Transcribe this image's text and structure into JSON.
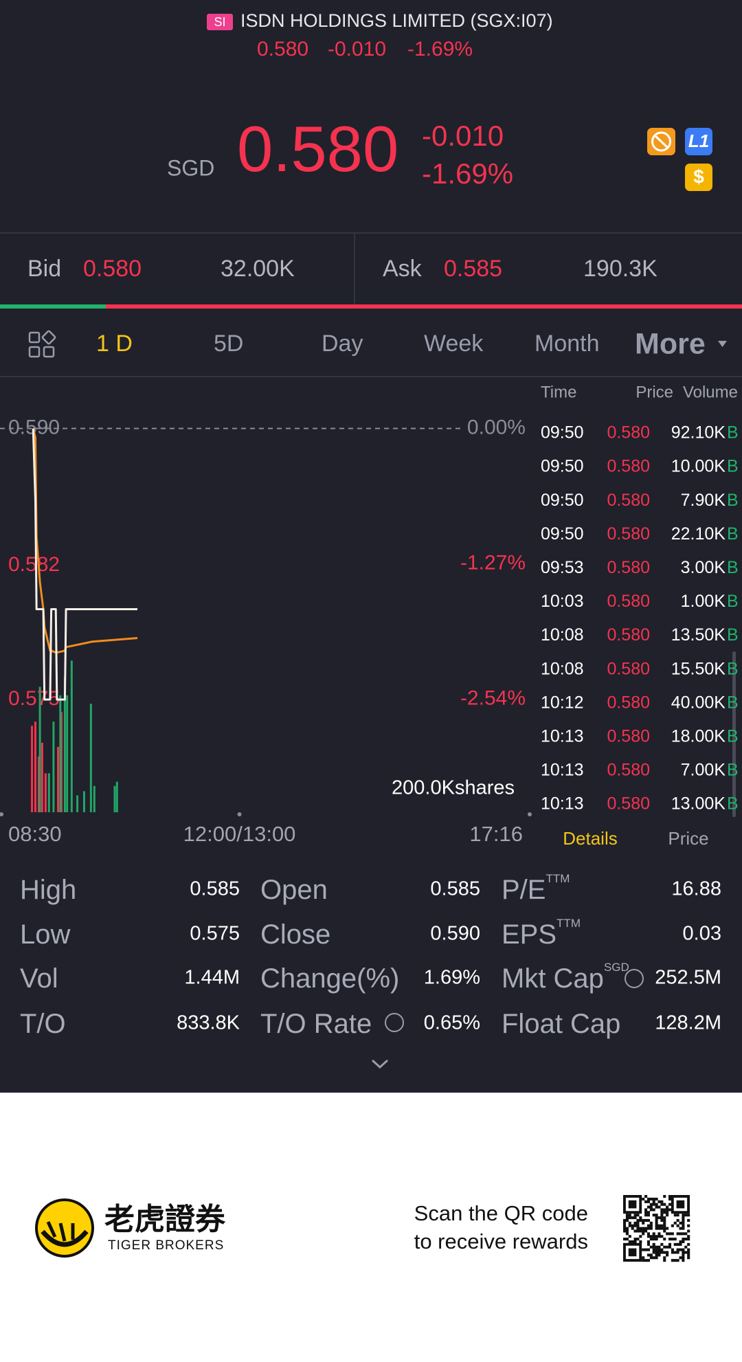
{
  "header": {
    "badge": "SI",
    "title": "ISDN HOLDINGS LIMITED (SGX:I07)",
    "price": "0.580",
    "change": "-0.010",
    "change_pct": "-1.69%"
  },
  "quote": {
    "currency": "SGD",
    "price": "0.580",
    "change": "-0.010",
    "change_pct": "-1.69%",
    "icons": [
      "L1",
      "$"
    ]
  },
  "order_book": {
    "bid_label": "Bid",
    "bid": "0.580",
    "bid_size": "32.00K",
    "ask_label": "Ask",
    "ask": "0.585",
    "ask_size": "190.3K"
  },
  "tabs": [
    "1 D",
    "5D",
    "Day",
    "Week",
    "Month",
    "More"
  ],
  "chart_data": {
    "type": "line",
    "x": [
      "08:58",
      "09:00",
      "09:01",
      "09:04",
      "09:07",
      "09:08",
      "09:13",
      "09:14",
      "09:18",
      "09:19",
      "09:26",
      "09:27",
      "09:50",
      "10:30"
    ],
    "series": [
      {
        "color": "#f4efe6",
        "values": [
          0.59,
          0.586,
          0.58,
          0.58,
          0.58,
          0.575,
          0.575,
          0.58,
          0.58,
          0.575,
          0.575,
          0.58,
          0.58,
          0.58
        ]
      },
      {
        "color": "#f08c1e",
        "values": [
          0.59,
          0.5895,
          0.584,
          0.5815,
          0.58,
          0.579,
          0.5777,
          0.5777,
          0.5776,
          0.5776,
          0.5777,
          0.5779,
          0.5782,
          0.5784
        ]
      }
    ],
    "ylim": [
      0.5688,
      0.5915
    ],
    "yticks": [
      {
        "value": 0.59,
        "label": "0.590"
      },
      {
        "value": 0.5824,
        "label": "0.582"
      },
      {
        "value": 0.575,
        "label": "0.575"
      }
    ],
    "y2lim": [
      -3.593,
      0.254
    ],
    "y2ticks": [
      {
        "value": 0,
        "label": "0.00%"
      },
      {
        "value": -1.27,
        "label": "-1.27%"
      },
      {
        "value": -2.54,
        "label": "-2.54%"
      }
    ],
    "xticks": [
      "08:30",
      "12:00/13:00",
      "17:16"
    ],
    "volume": {
      "label": "200.0Kshares",
      "ylim": [
        0,
        150000
      ],
      "series": [
        {
          "color": "#f2364d",
          "x": [
            "08:57",
            "09:00",
            "09:03",
            "09:06",
            "09:09",
            "09:20",
            "09:23"
          ],
          "values": [
            82000,
            86000,
            53000,
            66000,
            37000,
            62000,
            95000
          ]
        },
        {
          "color": "#23a566",
          "x": [
            "09:04",
            "09:12",
            "09:16",
            "09:22",
            "09:26",
            "09:28",
            "09:32",
            "09:37",
            "09:43",
            "09:49",
            "09:52",
            "10:10",
            "10:12"
          ],
          "values": [
            119000,
            37000,
            86000,
            111000,
            128000,
            111000,
            144000,
            16000,
            20000,
            103000,
            25000,
            25000,
            29000
          ]
        }
      ]
    }
  },
  "trades": {
    "headers": [
      "Time",
      "Price",
      "Volume"
    ],
    "rows": [
      [
        "09:50",
        "0.580",
        "92.10K",
        "B"
      ],
      [
        "09:50",
        "0.580",
        "10.00K",
        "B"
      ],
      [
        "09:50",
        "0.580",
        "7.90K",
        "B"
      ],
      [
        "09:50",
        "0.580",
        "22.10K",
        "B"
      ],
      [
        "09:53",
        "0.580",
        "3.00K",
        "B"
      ],
      [
        "10:03",
        "0.580",
        "1.00K",
        "B"
      ],
      [
        "10:08",
        "0.580",
        "13.50K",
        "B"
      ],
      [
        "10:08",
        "0.580",
        "15.50K",
        "B"
      ],
      [
        "10:12",
        "0.580",
        "40.00K",
        "B"
      ],
      [
        "10:13",
        "0.580",
        "18.00K",
        "B"
      ],
      [
        "10:13",
        "0.580",
        "7.00K",
        "B"
      ],
      [
        "10:13",
        "0.580",
        "13.00K",
        "B"
      ]
    ],
    "tabs": [
      "Details",
      "Price"
    ]
  },
  "stats": {
    "rows": [
      [
        {
          "label": "High",
          "value": "0.585"
        },
        {
          "label": "Open",
          "value": "0.585"
        },
        {
          "label": "P/E",
          "sup": "TTM",
          "value": "16.88"
        }
      ],
      [
        {
          "label": "Low",
          "value": "0.575"
        },
        {
          "label": "Close",
          "value": "0.590"
        },
        {
          "label": "EPS",
          "sup": "TTM",
          "value": "0.03"
        }
      ],
      [
        {
          "label": "Vol",
          "value": "1.44M"
        },
        {
          "label": "Change(%)",
          "value": "1.69%"
        },
        {
          "label": "Mkt Cap",
          "sup": "SGD",
          "value": "252.5M"
        }
      ],
      [
        {
          "label": "T/O",
          "value": "833.8K"
        },
        {
          "label": "T/O Rate",
          "value": "0.65%"
        },
        {
          "label": "Float Cap",
          "value": "128.2M"
        }
      ]
    ]
  },
  "footer": {
    "brand_cn": "老虎證券",
    "brand_en": "TIGER BROKERS",
    "cta": [
      "Scan the QR code",
      "to receive rewards"
    ]
  }
}
